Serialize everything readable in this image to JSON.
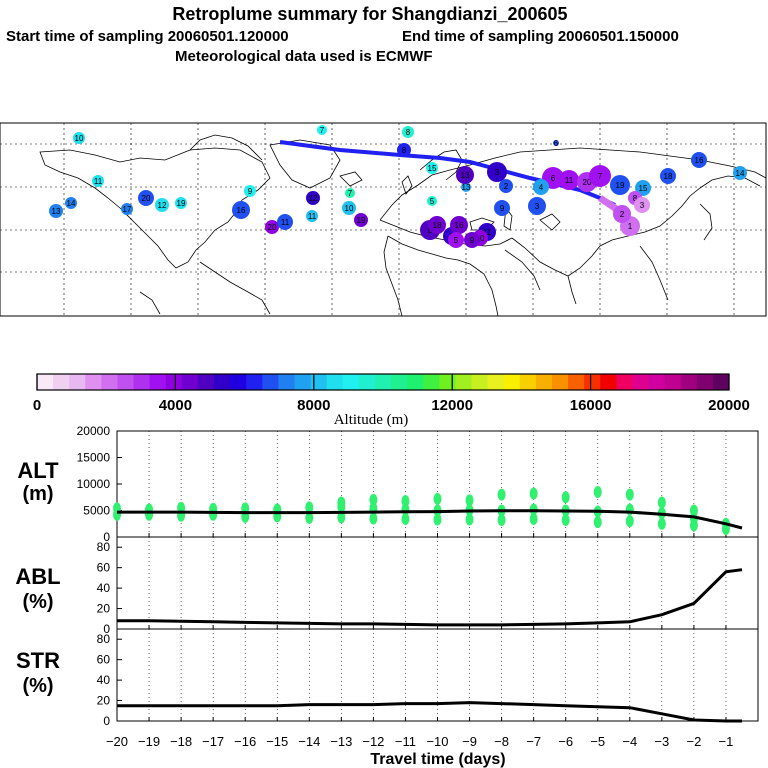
{
  "header": {
    "title": "Retroplume summary for Shangdianzi_200605",
    "start_label": "Start time of sampling 20060501.120000",
    "end_label": "End time of sampling 20060501.150000",
    "met_label": "Meteorological data used is ECMWF"
  },
  "colorbar": {
    "label": "Altitude (m)",
    "tick_labels": [
      "0",
      "4000",
      "8000",
      "12000",
      "16000",
      "20000"
    ],
    "range": [
      0,
      20000
    ],
    "colors": [
      "#f8e8f8",
      "#f0d0f0",
      "#e8b8f0",
      "#e090f0",
      "#d070f0",
      "#c050f0",
      "#b030f0",
      "#a010f0",
      "#9000e0",
      "#7000d0",
      "#5000c0",
      "#3000c8",
      "#2000e0",
      "#2020f0",
      "#2050f0",
      "#2080f0",
      "#20a0f0",
      "#20c0f0",
      "#20e0f0",
      "#20f0f0",
      "#20f0d0",
      "#20f0b0",
      "#20f090",
      "#20f070",
      "#40f040",
      "#70f020",
      "#a0f020",
      "#c8f020",
      "#e8f020",
      "#f8f000",
      "#f8d000",
      "#f8b000",
      "#f89000",
      "#f86000",
      "#f83000",
      "#f00000",
      "#f00060",
      "#e00090",
      "#d000a0",
      "#c00090",
      "#a00080",
      "#800070",
      "#600060"
    ]
  },
  "map": {
    "markers": [
      {
        "label": "10",
        "color": "#20e0f0"
      },
      {
        "label": "7",
        "color": "#20f0f0"
      },
      {
        "label": "8",
        "color": "#20f0d0"
      },
      {
        "label": "11",
        "color": "#20e0f0"
      },
      {
        "label": "8",
        "color": "#2020f0"
      },
      {
        "label": "6",
        "color": "#2050f0"
      },
      {
        "label": "20",
        "color": "#2050f0"
      },
      {
        "label": "12",
        "color": "#20e0f0"
      },
      {
        "label": "19",
        "color": "#20e0f0"
      },
      {
        "label": "13",
        "color": "#2080f0"
      },
      {
        "label": "14",
        "color": "#2080f0"
      },
      {
        "label": "17",
        "color": "#2080f0"
      },
      {
        "label": "9",
        "color": "#20f0f0"
      },
      {
        "label": "16",
        "color": "#2050f0"
      },
      {
        "label": "20",
        "color": "#9000e0"
      },
      {
        "label": "11",
        "color": "#2050f0"
      },
      {
        "label": "12",
        "color": "#3000c8"
      },
      {
        "label": "11",
        "color": "#20c0f0"
      },
      {
        "label": "7",
        "color": "#20f0b0"
      },
      {
        "label": "10",
        "color": "#20c0f0"
      },
      {
        "label": "15",
        "color": "#20f0f0"
      },
      {
        "label": "5",
        "color": "#20f0d0"
      },
      {
        "label": "13",
        "color": "#20a0f0"
      },
      {
        "label": "19",
        "color": "#7000d0"
      },
      {
        "label": "13",
        "color": "#5000c0"
      },
      {
        "label": "3",
        "color": "#3000c8"
      },
      {
        "label": "2",
        "color": "#2050f0"
      },
      {
        "label": "6",
        "color": "#a010f0"
      },
      {
        "label": "11",
        "color": "#a010f0"
      },
      {
        "label": "20",
        "color": "#b030f0"
      },
      {
        "label": "7",
        "color": "#a010f0"
      },
      {
        "label": "6",
        "color": "#5000c0"
      },
      {
        "label": "9",
        "color": "#3000c8"
      },
      {
        "label": "19",
        "color": "#2050f0"
      },
      {
        "label": "15",
        "color": "#20a0f0"
      },
      {
        "label": "18",
        "color": "#2050f0"
      },
      {
        "label": "16",
        "color": "#2050f0"
      },
      {
        "label": "14",
        "color": "#20a0f0"
      },
      {
        "label": "9",
        "color": "#2050f0"
      },
      {
        "label": "4",
        "color": "#20a0f0"
      },
      {
        "label": "3",
        "color": "#2050f0"
      },
      {
        "label": "8",
        "color": "#c050f0"
      },
      {
        "label": "11",
        "color": "#3000c8"
      },
      {
        "label": "16",
        "color": "#7000d0"
      },
      {
        "label": "18",
        "color": "#7000d0"
      },
      {
        "label": "10",
        "color": "#9000e0"
      },
      {
        "label": "9",
        "color": "#7000d0"
      },
      {
        "label": "5",
        "color": "#a010f0"
      },
      {
        "label": "1",
        "color": "#d070f0"
      },
      {
        "label": "2",
        "color": "#c050f0"
      },
      {
        "label": "3",
        "color": "#e090f0"
      }
    ]
  },
  "chart_data": [
    {
      "type": "scatter+line",
      "panel_label": "ALT\n(m)",
      "label_line1": "ALT",
      "label_line2": "(m)",
      "ylim": [
        0,
        20000
      ],
      "yticks": [
        0,
        5000,
        10000,
        15000,
        20000
      ],
      "ytick_labels": [
        "0",
        "5000",
        "10000",
        "15000",
        "20000"
      ],
      "line": {
        "x": [
          -20,
          -19,
          -18,
          -17,
          -16,
          -15,
          -14,
          -13,
          -12,
          -11,
          -10,
          -9,
          -8,
          -7,
          -6,
          -5,
          -4,
          -3,
          -2,
          -1,
          -0.5
        ],
        "y": [
          4700,
          4700,
          4700,
          4650,
          4600,
          4600,
          4600,
          4650,
          4700,
          4750,
          4800,
          4900,
          4950,
          4950,
          4900,
          4850,
          4700,
          4300,
          3800,
          2500,
          1700
        ]
      },
      "scatter": {
        "color": "#30f070",
        "points": [
          [
            -20,
            4200
          ],
          [
            -20,
            5400
          ],
          [
            -19,
            4200
          ],
          [
            -19,
            5200
          ],
          [
            -18,
            4000
          ],
          [
            -18,
            5500
          ],
          [
            -17,
            4200
          ],
          [
            -17,
            5300
          ],
          [
            -16,
            3800
          ],
          [
            -16,
            5400
          ],
          [
            -15,
            3900
          ],
          [
            -15,
            5200
          ],
          [
            -14,
            3600
          ],
          [
            -14,
            5600
          ],
          [
            -13,
            3700
          ],
          [
            -13,
            5700
          ],
          [
            -13,
            6500
          ],
          [
            -12,
            3500
          ],
          [
            -12,
            5400
          ],
          [
            -12,
            7000
          ],
          [
            -11,
            3400
          ],
          [
            -11,
            5200
          ],
          [
            -11,
            6800
          ],
          [
            -10,
            3300
          ],
          [
            -10,
            5000
          ],
          [
            -10,
            7200
          ],
          [
            -9,
            3300
          ],
          [
            -9,
            5100
          ],
          [
            -9,
            6900
          ],
          [
            -8,
            3200
          ],
          [
            -8,
            5000
          ],
          [
            -8,
            8000
          ],
          [
            -7,
            3400
          ],
          [
            -7,
            5200
          ],
          [
            -7,
            8200
          ],
          [
            -6,
            3200
          ],
          [
            -6,
            5000
          ],
          [
            -6,
            7500
          ],
          [
            -5,
            2800
          ],
          [
            -5,
            4800
          ],
          [
            -5,
            8500
          ],
          [
            -4,
            3000
          ],
          [
            -4,
            5200
          ],
          [
            -4,
            8000
          ],
          [
            -3,
            2500
          ],
          [
            -3,
            4500
          ],
          [
            -3,
            6500
          ],
          [
            -2,
            2200
          ],
          [
            -2,
            3500
          ],
          [
            -2,
            5000
          ],
          [
            -1,
            1500
          ],
          [
            -1,
            2500
          ]
        ]
      }
    },
    {
      "type": "line",
      "label_line1": "ABL",
      "label_line2": "(%)",
      "ylim": [
        0,
        90
      ],
      "yticks": [
        0,
        20,
        40,
        60,
        80
      ],
      "ytick_labels": [
        "0",
        "20",
        "40",
        "60",
        "80"
      ],
      "x": [
        -20,
        -19,
        -18,
        -17,
        -16,
        -15,
        -14,
        -13,
        -12,
        -11,
        -10,
        -9,
        -8,
        -7,
        -6,
        -5,
        -4,
        -3,
        -2,
        -1,
        -0.5
      ],
      "y": [
        8,
        8,
        7.5,
        7,
        6.5,
        6,
        5.5,
        5,
        5,
        4.5,
        4,
        4,
        4,
        4.5,
        5,
        6,
        7,
        14,
        25,
        56,
        58
      ]
    },
    {
      "type": "line",
      "label_line1": "STR",
      "label_line2": "(%)",
      "ylim": [
        0,
        90
      ],
      "yticks": [
        0,
        20,
        40,
        60,
        80
      ],
      "ytick_labels": [
        "0",
        "20",
        "40",
        "60",
        "80"
      ],
      "x": [
        -20,
        -19,
        -18,
        -17,
        -16,
        -15,
        -14,
        -13,
        -12,
        -11,
        -10,
        -9,
        -8,
        -7,
        -6,
        -5,
        -4,
        -3,
        -2,
        -1,
        -0.5
      ],
      "y": [
        15,
        15,
        15,
        15,
        15,
        15,
        16,
        16,
        16,
        17,
        17,
        18,
        17,
        16,
        15,
        14,
        13,
        7,
        1,
        0,
        0
      ]
    }
  ],
  "xaxis": {
    "label": "Travel time (days)",
    "range": [
      -20,
      0
    ],
    "ticks": [
      -20,
      -19,
      -18,
      -17,
      -16,
      -15,
      -14,
      -13,
      -12,
      -11,
      -10,
      -9,
      -8,
      -7,
      -6,
      -5,
      -4,
      -3,
      -2,
      -1
    ],
    "tick_labels": [
      "−20",
      "−19",
      "−18",
      "−17",
      "−16",
      "−15",
      "−14",
      "−13",
      "−12",
      "−11",
      "−10",
      "−9",
      "−8",
      "−7",
      "−6",
      "−5",
      "−4",
      "−3",
      "−2",
      "−1"
    ]
  }
}
